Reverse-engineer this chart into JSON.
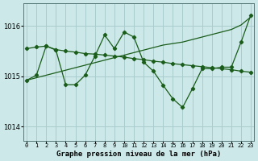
{
  "bg_color": "#cce8e8",
  "grid_color": "#aacccc",
  "line_color": "#1a5c1a",
  "title": "Graphe pression niveau de la mer (hPa)",
  "yticks": [
    1014,
    1015,
    1016
  ],
  "ylim": [
    1013.72,
    1016.45
  ],
  "xlim": [
    -0.3,
    23.3
  ],
  "line_diagonal_x": [
    0,
    1,
    2,
    3,
    4,
    5,
    6,
    7,
    8,
    9,
    10,
    11,
    12,
    13,
    14,
    15,
    16,
    17,
    18,
    19,
    20,
    21,
    22,
    23
  ],
  "line_diagonal_y": [
    1014.92,
    1014.97,
    1015.02,
    1015.07,
    1015.12,
    1015.17,
    1015.22,
    1015.27,
    1015.32,
    1015.37,
    1015.42,
    1015.47,
    1015.52,
    1015.57,
    1015.62,
    1015.65,
    1015.68,
    1015.73,
    1015.78,
    1015.83,
    1015.88,
    1015.93,
    1016.02,
    1016.18
  ],
  "line_flat_x": [
    0,
    1,
    2,
    3,
    4,
    5,
    6,
    7,
    8,
    9,
    10,
    11,
    12,
    13,
    14,
    15,
    16,
    17,
    18,
    19,
    20,
    21,
    22,
    23
  ],
  "line_flat_y": [
    1015.55,
    1015.58,
    1015.6,
    1015.53,
    1015.5,
    1015.48,
    1015.45,
    1015.44,
    1015.42,
    1015.4,
    1015.38,
    1015.35,
    1015.33,
    1015.3,
    1015.28,
    1015.25,
    1015.23,
    1015.21,
    1015.19,
    1015.17,
    1015.15,
    1015.13,
    1015.1,
    1015.08
  ],
  "line_volatile_x": [
    0,
    1,
    2,
    3,
    4,
    5,
    6,
    7,
    8,
    9,
    10,
    11,
    12,
    13,
    14,
    15,
    16,
    17,
    18,
    19,
    20,
    21,
    22,
    23
  ],
  "line_volatile_y": [
    1014.92,
    1015.02,
    1015.6,
    1015.52,
    1014.83,
    1014.83,
    1015.02,
    1015.4,
    1015.82,
    1015.55,
    1015.88,
    1015.78,
    1015.28,
    1015.1,
    1014.82,
    1014.55,
    1014.38,
    1014.75,
    1015.15,
    1015.15,
    1015.18,
    1015.18,
    1015.68,
    1016.22
  ]
}
